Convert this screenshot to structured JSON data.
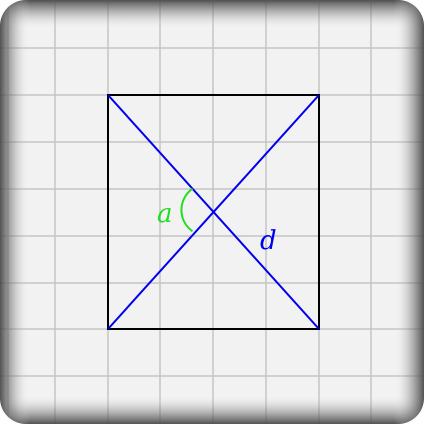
{
  "diagram": {
    "angle_label": "a",
    "diagonal_label": "d",
    "colors": {
      "paper": "#f2f2f2",
      "grid": "#c4c4c4",
      "shadow": "#5a5a5a",
      "rectangle": "#000000",
      "diagonals": "#0000ee",
      "angle": "#22dd22"
    }
  }
}
